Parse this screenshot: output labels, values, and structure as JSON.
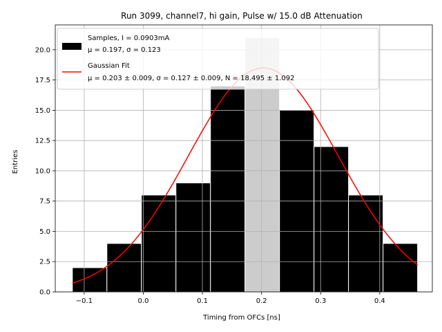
{
  "chart_data": {
    "type": "bar",
    "title": "Run 3099, channel7, hi gain, Pulse w/ 15.0 dB Attenuation",
    "xlabel": "Timing from OFCs [ns]",
    "ylabel": "Entries",
    "xlim": [
      -0.149,
      0.489
    ],
    "ylim": [
      0,
      22.05
    ],
    "grid": true,
    "legend_position": "top-left",
    "x_ticks": [
      -0.1,
      0.0,
      0.1,
      0.2,
      0.3,
      0.4
    ],
    "x_tick_labels": [
      "−0.1",
      "0.0",
      "0.1",
      "0.2",
      "0.3",
      "0.4"
    ],
    "y_ticks": [
      0.0,
      2.5,
      5.0,
      7.5,
      10.0,
      12.5,
      15.0,
      17.5,
      20.0
    ],
    "y_tick_labels": [
      "0.0",
      "2.5",
      "5.0",
      "7.5",
      "10.0",
      "12.5",
      "15.0",
      "17.5",
      "20.0"
    ],
    "bin_edges": [
      -0.12,
      -0.0616,
      -0.0032,
      0.0552,
      0.1136,
      0.172,
      0.2304,
      0.2888,
      0.3472,
      0.4056,
      0.464
    ],
    "counts": [
      2,
      4,
      8,
      9,
      17,
      21,
      15,
      12,
      8,
      4
    ],
    "highlight_bin_index": 5,
    "fit": {
      "mu": 0.203,
      "sigma": 0.127,
      "N": 18.495,
      "x_range": [
        -0.12,
        0.464
      ]
    },
    "legend": {
      "samples_line1": "Samples, I = 0.0903mA",
      "samples_line2": "μ = 0.197, σ = 0.123",
      "fit_line1": "Gaussian Fit",
      "fit_line2": "μ = 0.203 ± 0.009, σ = 0.127 ± 0.009, N = 18.495 ± 1.092"
    },
    "colors": {
      "bars": "#000000",
      "bar_edges": "#ffffff",
      "highlight_bar": "#cccccc",
      "fit_line": "#ff0000",
      "grid": "#b0b0b0"
    }
  }
}
